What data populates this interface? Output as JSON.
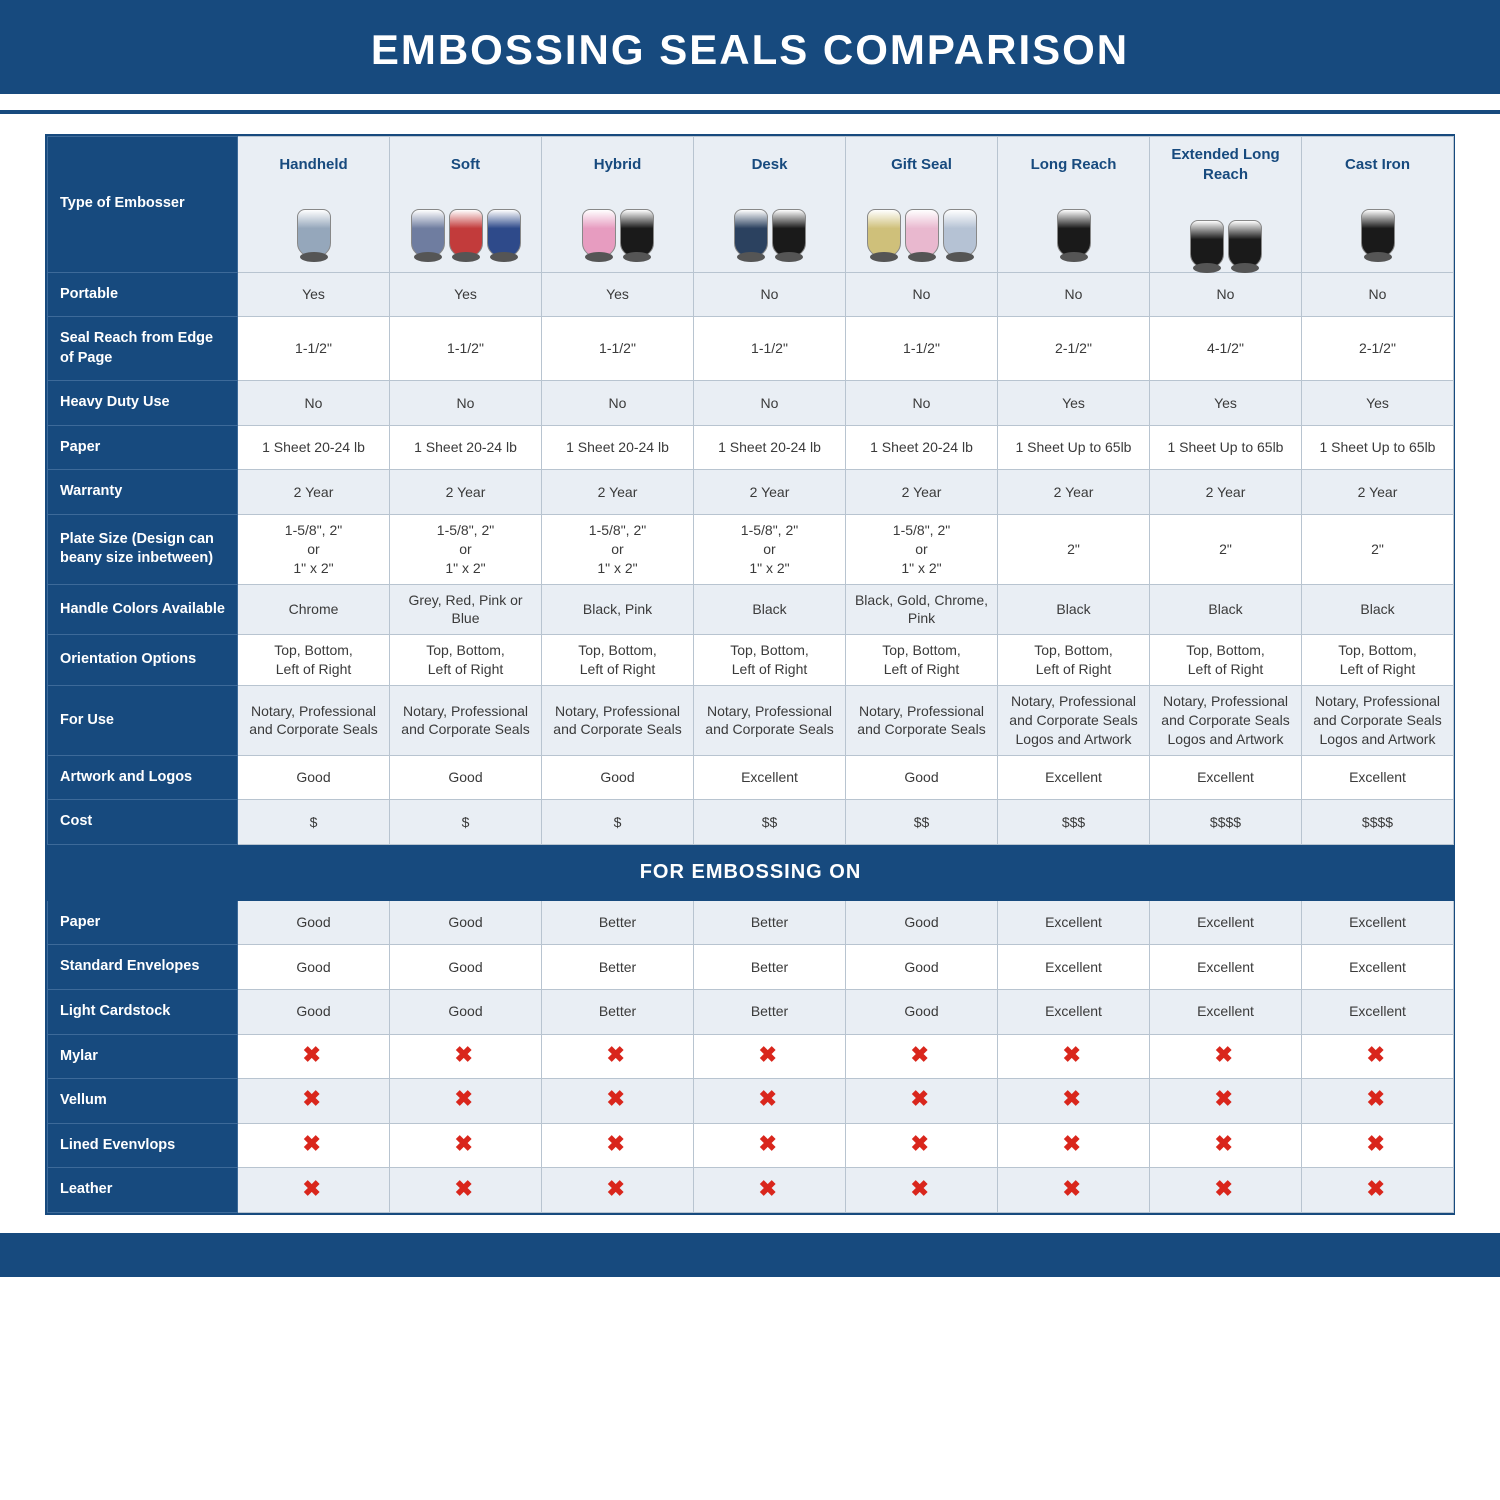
{
  "page": {
    "title": "EMBOSSING SEALS COMPARISON",
    "brand_color": "#174a7e",
    "alt_row_bg": "#e9eef4",
    "plain_row_bg": "#ffffff",
    "border_color": "#b8c4d0",
    "x_color": "#d9261c",
    "title_fontsize": 42,
    "cell_fontsize": 14,
    "col_title_fontsize": 15
  },
  "header_row_label": "Type of Embosser",
  "columns": [
    {
      "label": "Handheld",
      "thumb_colors": [
        "#95a7bb"
      ]
    },
    {
      "label": "Soft",
      "thumb_colors": [
        "#6f7da0",
        "#c23b3b",
        "#2e4a8a"
      ]
    },
    {
      "label": "Hybrid",
      "thumb_colors": [
        "#e79cc0",
        "#1a1a1a"
      ]
    },
    {
      "label": "Desk",
      "thumb_colors": [
        "#2b415f",
        "#1a1a1a"
      ]
    },
    {
      "label": "Gift Seal",
      "thumb_colors": [
        "#cfc07a",
        "#e9b8cf",
        "#b5c2d4"
      ]
    },
    {
      "label": "Long Reach",
      "thumb_colors": [
        "#1a1a1a"
      ]
    },
    {
      "label": "Extended Long Reach",
      "thumb_colors": [
        "#1a1a1a",
        "#1a1a1a"
      ]
    },
    {
      "label": "Cast Iron",
      "thumb_colors": [
        "#1a1a1a"
      ]
    }
  ],
  "rows": [
    {
      "label": "Portable",
      "alt": true,
      "cells": [
        "Yes",
        "Yes",
        "Yes",
        "No",
        "No",
        "No",
        "No",
        "No"
      ]
    },
    {
      "label": "Seal Reach from Edge of Page",
      "alt": false,
      "cells": [
        "1-1/2\"",
        "1-1/2\"",
        "1-1/2\"",
        "1-1/2\"",
        "1-1/2\"",
        "2-1/2\"",
        "4-1/2\"",
        "2-1/2\""
      ]
    },
    {
      "label": "Heavy Duty Use",
      "alt": true,
      "cells": [
        "No",
        "No",
        "No",
        "No",
        "No",
        "Yes",
        "Yes",
        "Yes"
      ]
    },
    {
      "label": "Paper",
      "alt": false,
      "cells": [
        "1 Sheet 20-24 lb",
        "1 Sheet 20-24 lb",
        "1 Sheet 20-24 lb",
        "1 Sheet 20-24 lb",
        "1 Sheet 20-24 lb",
        "1 Sheet Up to 65lb",
        "1 Sheet Up to 65lb",
        "1 Sheet Up to 65lb"
      ]
    },
    {
      "label": "Warranty",
      "alt": true,
      "cells": [
        "2 Year",
        "2 Year",
        "2 Year",
        "2 Year",
        "2 Year",
        "2 Year",
        "2 Year",
        "2 Year"
      ]
    },
    {
      "label": "Plate Size (Design can beany size inbetween)",
      "alt": false,
      "cells": [
        "1-5/8\", 2\"\nor\n1\" x 2\"",
        "1-5/8\", 2\"\nor\n1\" x 2\"",
        "1-5/8\", 2\"\nor\n1\" x 2\"",
        "1-5/8\", 2\"\nor\n1\" x 2\"",
        "1-5/8\", 2\"\nor\n1\" x 2\"",
        "2\"",
        "2\"",
        "2\""
      ]
    },
    {
      "label": "Handle Colors Available",
      "alt": true,
      "cells": [
        "Chrome",
        "Grey, Red, Pink or Blue",
        "Black, Pink",
        "Black",
        "Black, Gold, Chrome, Pink",
        "Black",
        "Black",
        "Black"
      ]
    },
    {
      "label": "Orientation Options",
      "alt": false,
      "cells": [
        "Top, Bottom,\nLeft of Right",
        "Top, Bottom,\nLeft of Right",
        "Top, Bottom,\nLeft of Right",
        "Top, Bottom,\nLeft of Right",
        "Top, Bottom,\nLeft of Right",
        "Top, Bottom,\nLeft of Right",
        "Top, Bottom,\nLeft of Right",
        "Top, Bottom,\nLeft of Right"
      ]
    },
    {
      "label": "For Use",
      "alt": true,
      "cells": [
        "Notary, Professional and Corporate Seals",
        "Notary, Professional and Corporate Seals",
        "Notary, Professional and Corporate Seals",
        "Notary, Professional and Corporate Seals",
        "Notary, Professional and Corporate Seals",
        "Notary, Professional and Corporate Seals Logos and Artwork",
        "Notary, Professional and Corporate Seals Logos and Artwork",
        "Notary, Professional and Corporate Seals Logos and Artwork"
      ]
    },
    {
      "label": "Artwork and Logos",
      "alt": false,
      "cells": [
        "Good",
        "Good",
        "Good",
        "Excellent",
        "Good",
        "Excellent",
        "Excellent",
        "Excellent"
      ]
    },
    {
      "label": "Cost",
      "alt": true,
      "cells": [
        "$",
        "$",
        "$",
        "$$",
        "$$",
        "$$$",
        "$$$$",
        "$$$$"
      ]
    }
  ],
  "section_label": "FOR EMBOSSING ON",
  "embossing_rows": [
    {
      "label": "Paper",
      "alt": true,
      "cells": [
        "Good",
        "Good",
        "Better",
        "Better",
        "Good",
        "Excellent",
        "Excellent",
        "Excellent"
      ]
    },
    {
      "label": "Standard Envelopes",
      "alt": false,
      "cells": [
        "Good",
        "Good",
        "Better",
        "Better",
        "Good",
        "Excellent",
        "Excellent",
        "Excellent"
      ]
    },
    {
      "label": "Light Cardstock",
      "alt": true,
      "cells": [
        "Good",
        "Good",
        "Better",
        "Better",
        "Good",
        "Excellent",
        "Excellent",
        "Excellent"
      ]
    },
    {
      "label": "Mylar",
      "alt": false,
      "cells": [
        "X",
        "X",
        "X",
        "X",
        "X",
        "X",
        "X",
        "X"
      ]
    },
    {
      "label": "Vellum",
      "alt": true,
      "cells": [
        "X",
        "X",
        "X",
        "X",
        "X",
        "X",
        "X",
        "X"
      ]
    },
    {
      "label": "Lined Evenvlops",
      "alt": false,
      "cells": [
        "X",
        "X",
        "X",
        "X",
        "X",
        "X",
        "X",
        "X"
      ]
    },
    {
      "label": "Leather",
      "alt": true,
      "cells": [
        "X",
        "X",
        "X",
        "X",
        "X",
        "X",
        "X",
        "X"
      ]
    }
  ]
}
